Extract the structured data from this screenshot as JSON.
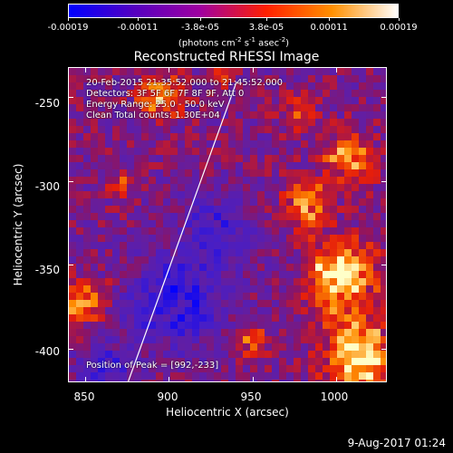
{
  "colorbar": {
    "labels": [
      "-0.00019",
      "-0.00011",
      "-3.8e-05",
      "3.8e-05",
      "0.00011",
      "0.00019"
    ],
    "units_main": "(photons cm",
    "units_exp1": "-2",
    "units_mid1": " s",
    "units_exp2": "-1",
    "units_mid2": " asec",
    "units_exp3": "-2",
    "units_end": ")"
  },
  "title": "Reconstructed RHESSI Image",
  "info": {
    "time_range": "20-Feb-2015 21:35:52.000 to 21:45:52.000",
    "detectors": "Detectors: 3F 5F 6F 7F 8F 9F, Att 0",
    "energy": "Energy Range: 25.0 - 50.0 keV",
    "clean": "Clean     Total counts: 1.30E+04",
    "peak": "Position of Peak = [992,-233]"
  },
  "axes": {
    "xlabel": "Heliocentric X (arcsec)",
    "ylabel": "Heliocentric Y (arcsec)",
    "xticks": [
      "850",
      "900",
      "950",
      "1000"
    ],
    "yticks": [
      "-250",
      "-300",
      "-350",
      "-400"
    ]
  },
  "footer_date": "9-Aug-2017 01:24",
  "chart_data": {
    "type": "heatmap",
    "title": "Reconstructed RHESSI Image",
    "xlabel": "Heliocentric X (arcsec)",
    "ylabel": "Heliocentric Y (arcsec)",
    "xlim": [
      840,
      1030
    ],
    "ylim": [
      -420,
      -232
    ],
    "xticks": [
      850,
      900,
      950,
      1000
    ],
    "yticks": [
      -250,
      -300,
      -350,
      -400
    ],
    "colorbar": {
      "min": -0.00019,
      "max": 0.00019,
      "ticks": [
        -0.00019,
        -0.00011,
        -3.8e-05,
        3.8e-05,
        0.00011,
        0.00019
      ],
      "colors": [
        "#0000ff",
        "#5500c0",
        "#a000a0",
        "#ff2000",
        "#ff9000",
        "#ffffff"
      ]
    },
    "peak_position": [
      992,
      -233
    ],
    "limb_line": [
      [
        875,
        -420
      ],
      [
        940,
        -240
      ]
    ],
    "grid": false
  }
}
